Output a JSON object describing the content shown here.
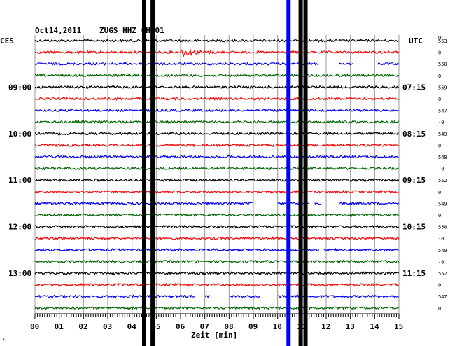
{
  "header": {
    "date": "Oct14,2011",
    "station": "ZUGS HHZ CH 01",
    "left_zone": "CES",
    "right_zone": "UTC",
    "dc_label": "DC"
  },
  "footer": {
    "xlabel": "Zeit [min]",
    "corner_mark": "*"
  },
  "chart_data": {
    "type": "line",
    "title": "Oct14,2011   ZUGS HHZ CH 01",
    "xlabel": "Zeit [min]",
    "xlim": [
      0,
      15
    ],
    "x_ticks": [
      "00",
      "01",
      "02",
      "03",
      "04",
      "05",
      "06",
      "07",
      "08",
      "09",
      "10",
      "11",
      "12",
      "13",
      "14",
      "15"
    ],
    "rows_per_hour": 4,
    "minutes_per_row": 15,
    "trace_color_cycle": [
      "#000000",
      "#ff0000",
      "#0000ff",
      "#006400"
    ],
    "left_labels": [
      {
        "row": 4,
        "text": "09:00"
      },
      {
        "row": 8,
        "text": "10:00"
      },
      {
        "row": 12,
        "text": "11:00"
      },
      {
        "row": 16,
        "text": "12:00"
      },
      {
        "row": 20,
        "text": "13:00"
      }
    ],
    "right_labels": [
      {
        "row": 4,
        "text": "07:15"
      },
      {
        "row": 8,
        "text": "08:15"
      },
      {
        "row": 12,
        "text": "09:15"
      },
      {
        "row": 16,
        "text": "10:15"
      },
      {
        "row": 20,
        "text": "11:15"
      }
    ],
    "dc_values": [
      "553",
      "0",
      "550",
      "0",
      "559",
      "0",
      "547",
      "-0",
      "549",
      "0",
      "548",
      "-0",
      "552",
      "0",
      "549",
      "0",
      "550",
      "-0",
      "549",
      "-0",
      "552",
      "0",
      "547",
      "0"
    ],
    "row_count": 24,
    "events": [
      {
        "row": 1,
        "start_min": 6.0,
        "end_min": 7.5,
        "amplitude": "medium"
      }
    ],
    "gaps": [
      {
        "row": 2,
        "start_min": 11.7,
        "end_min": 12.5
      },
      {
        "row": 2,
        "start_min": 13.1,
        "end_min": 14.1
      },
      {
        "row": 14,
        "start_min": 9.0,
        "end_min": 10.0
      },
      {
        "row": 14,
        "start_min": 11.3,
        "end_min": 11.5
      },
      {
        "row": 14,
        "start_min": 11.8,
        "end_min": 12.5
      },
      {
        "row": 18,
        "start_min": 11.7,
        "end_min": 11.9
      },
      {
        "row": 22,
        "start_min": 6.6,
        "end_min": 7.0
      },
      {
        "row": 22,
        "start_min": 7.2,
        "end_min": 8.0
      },
      {
        "row": 22,
        "start_min": 9.3,
        "end_min": 10.0
      }
    ],
    "vertical_bands": [
      {
        "minute": 4.5,
        "color": "#000000"
      },
      {
        "minute": 4.85,
        "color": "#000000"
      },
      {
        "minute": 10.45,
        "color": "#0000ff"
      },
      {
        "minute": 10.95,
        "color": "#000000"
      },
      {
        "minute": 11.15,
        "color": "#000000"
      }
    ]
  }
}
